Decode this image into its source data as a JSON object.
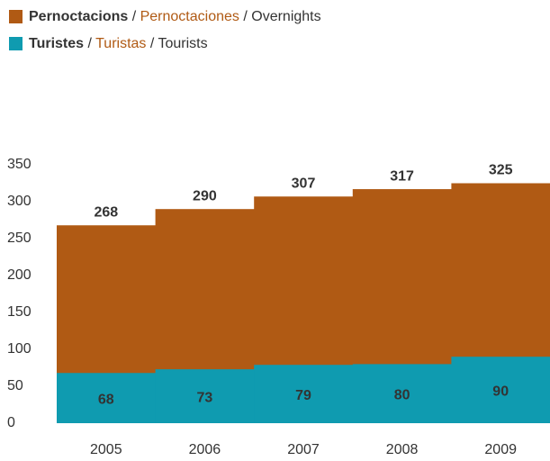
{
  "chart_data": {
    "type": "overlap-bar",
    "categories": [
      "2005",
      "2006",
      "2007",
      "2008",
      "2009"
    ],
    "series": [
      {
        "name": "Pernoctacions / Pernoctaciones / Overnights",
        "color": "#b05a14",
        "values": [
          268,
          290,
          307,
          317,
          325
        ]
      },
      {
        "name": "Turistes / Turistas / Tourists",
        "color": "#0f9bb0",
        "values": [
          68,
          73,
          79,
          80,
          90
        ]
      }
    ],
    "ylim": [
      0,
      350
    ],
    "yticks": [
      0,
      50,
      100,
      150,
      200,
      250,
      300,
      350
    ],
    "grid": false
  }
}
